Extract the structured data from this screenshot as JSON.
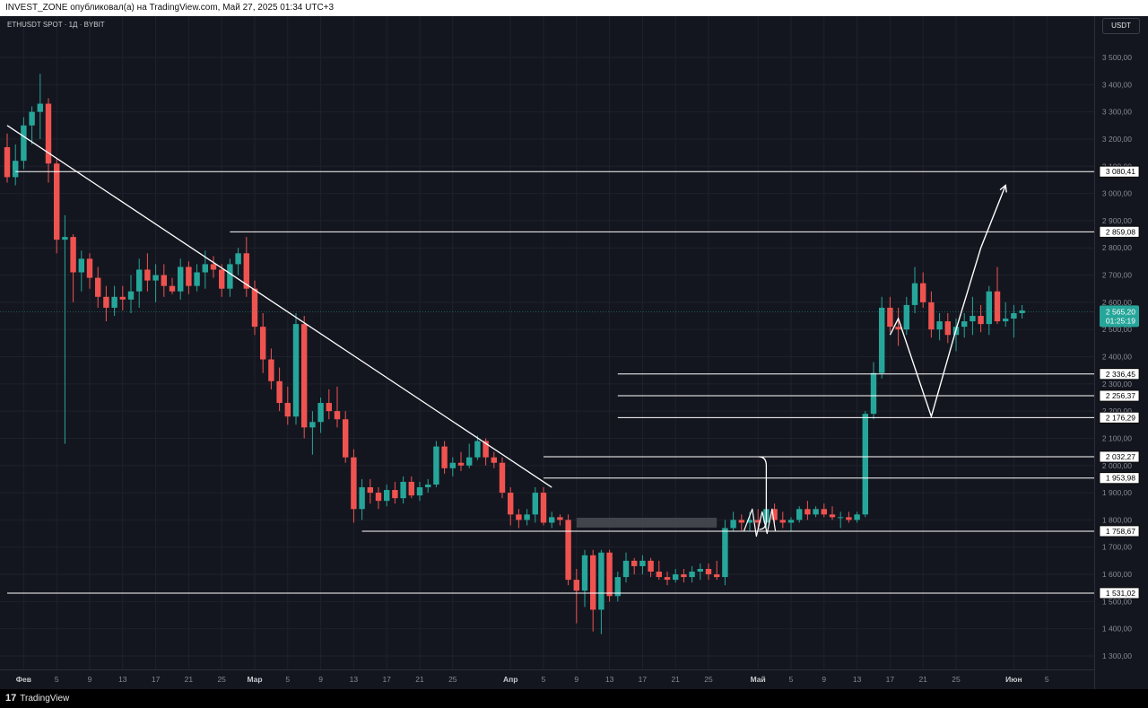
{
  "header": {
    "publish_line": "INVEST_ZONE опубликовал(а) на TradingView.com, Май 27, 2025 01:34 UTC+3"
  },
  "chart_header": {
    "symbol": "ETHUSDT SPOT · 1Д · BYBIT",
    "currency_button": "USDT"
  },
  "footer": {
    "brand": "TradingView",
    "logo_glyph": "17"
  },
  "colors": {
    "background": "#14161f",
    "bull": "#26a69a",
    "bear": "#ef5350",
    "drawing": "#ffffff",
    "axis_text": "#868993",
    "grid": "#1e212b"
  },
  "chart_data": {
    "type": "candlestick",
    "title": "ETHUSDT SPOT · 1Д · BYBIT",
    "y_axis": {
      "ticks": [
        1300,
        1400,
        1500,
        1600,
        1700,
        1800,
        1900,
        2000,
        2100,
        2200,
        2300,
        2400,
        2500,
        2600,
        2700,
        2800,
        2900,
        3000,
        3100,
        3200,
        3300,
        3400,
        3500
      ],
      "tick_labels": [
        "1 300,00",
        "1 400,00",
        "1 500,00",
        "1 600,00",
        "1 700,00",
        "1 800,00",
        "1 900,00",
        "2 000,00",
        "2 100,00",
        "2 200,00",
        "2 300,00",
        "2 400,00",
        "2 500,00",
        "2 600,00",
        "2 700,00",
        "2 800,00",
        "2 900,00",
        "3 000,00",
        "3 100,00",
        "3 200,00",
        "3 300,00",
        "3 400,00",
        "3 500,00"
      ],
      "range": [
        1230,
        3580
      ]
    },
    "x_axis": {
      "start_date": "2025-01-30",
      "tick_labels": [
        {
          "day": 2,
          "label": "Фев",
          "bold": true
        },
        {
          "day": 6,
          "label": "5"
        },
        {
          "day": 10,
          "label": "9"
        },
        {
          "day": 14,
          "label": "13"
        },
        {
          "day": 18,
          "label": "17"
        },
        {
          "day": 22,
          "label": "21"
        },
        {
          "day": 26,
          "label": "25"
        },
        {
          "day": 30,
          "label": "Мар",
          "bold": true
        },
        {
          "day": 34,
          "label": "5"
        },
        {
          "day": 38,
          "label": "9"
        },
        {
          "day": 42,
          "label": "13"
        },
        {
          "day": 46,
          "label": "17"
        },
        {
          "day": 50,
          "label": "21"
        },
        {
          "day": 54,
          "label": "25"
        },
        {
          "day": 61,
          "label": "Апр",
          "bold": true
        },
        {
          "day": 65,
          "label": "5"
        },
        {
          "day": 69,
          "label": "9"
        },
        {
          "day": 73,
          "label": "13"
        },
        {
          "day": 77,
          "label": "17"
        },
        {
          "day": 81,
          "label": "21"
        },
        {
          "day": 85,
          "label": "25"
        },
        {
          "day": 91,
          "label": "Май",
          "bold": true
        },
        {
          "day": 95,
          "label": "5"
        },
        {
          "day": 99,
          "label": "9"
        },
        {
          "day": 103,
          "label": "13"
        },
        {
          "day": 107,
          "label": "17"
        },
        {
          "day": 111,
          "label": "21"
        },
        {
          "day": 115,
          "label": "25"
        },
        {
          "day": 122,
          "label": "Июн",
          "bold": true
        },
        {
          "day": 126,
          "label": "5"
        }
      ]
    },
    "candles": [
      {
        "o": 3170,
        "h": 3220,
        "l": 3040,
        "c": 3060
      },
      {
        "o": 3060,
        "h": 3180,
        "l": 3030,
        "c": 3120
      },
      {
        "o": 3120,
        "h": 3280,
        "l": 3090,
        "c": 3250
      },
      {
        "o": 3250,
        "h": 3320,
        "l": 3180,
        "c": 3300
      },
      {
        "o": 3300,
        "h": 3440,
        "l": 3200,
        "c": 3330
      },
      {
        "o": 3330,
        "h": 3350,
        "l": 3040,
        "c": 3110
      },
      {
        "o": 3110,
        "h": 3130,
        "l": 2780,
        "c": 2830
      },
      {
        "o": 2830,
        "h": 2920,
        "l": 2080,
        "c": 2840
      },
      {
        "o": 2840,
        "h": 2850,
        "l": 2600,
        "c": 2710
      },
      {
        "o": 2710,
        "h": 2790,
        "l": 2640,
        "c": 2760
      },
      {
        "o": 2760,
        "h": 2780,
        "l": 2650,
        "c": 2690
      },
      {
        "o": 2690,
        "h": 2730,
        "l": 2580,
        "c": 2620
      },
      {
        "o": 2620,
        "h": 2660,
        "l": 2530,
        "c": 2580
      },
      {
        "o": 2580,
        "h": 2660,
        "l": 2550,
        "c": 2620
      },
      {
        "o": 2620,
        "h": 2660,
        "l": 2570,
        "c": 2610
      },
      {
        "o": 2610,
        "h": 2700,
        "l": 2560,
        "c": 2640
      },
      {
        "o": 2640,
        "h": 2760,
        "l": 2580,
        "c": 2720
      },
      {
        "o": 2720,
        "h": 2780,
        "l": 2640,
        "c": 2680
      },
      {
        "o": 2680,
        "h": 2740,
        "l": 2600,
        "c": 2700
      },
      {
        "o": 2700,
        "h": 2740,
        "l": 2620,
        "c": 2660
      },
      {
        "o": 2660,
        "h": 2690,
        "l": 2630,
        "c": 2640
      },
      {
        "o": 2640,
        "h": 2760,
        "l": 2610,
        "c": 2730
      },
      {
        "o": 2730,
        "h": 2750,
        "l": 2630,
        "c": 2660
      },
      {
        "o": 2660,
        "h": 2740,
        "l": 2640,
        "c": 2710
      },
      {
        "o": 2710,
        "h": 2790,
        "l": 2650,
        "c": 2740
      },
      {
        "o": 2740,
        "h": 2770,
        "l": 2690,
        "c": 2720
      },
      {
        "o": 2720,
        "h": 2740,
        "l": 2620,
        "c": 2650
      },
      {
        "o": 2650,
        "h": 2760,
        "l": 2620,
        "c": 2740
      },
      {
        "o": 2740,
        "h": 2800,
        "l": 2700,
        "c": 2780
      },
      {
        "o": 2780,
        "h": 2840,
        "l": 2620,
        "c": 2650
      },
      {
        "o": 2650,
        "h": 2680,
        "l": 2480,
        "c": 2510
      },
      {
        "o": 2510,
        "h": 2560,
        "l": 2340,
        "c": 2390
      },
      {
        "o": 2390,
        "h": 2430,
        "l": 2280,
        "c": 2310
      },
      {
        "o": 2310,
        "h": 2360,
        "l": 2200,
        "c": 2230
      },
      {
        "o": 2230,
        "h": 2290,
        "l": 2150,
        "c": 2180
      },
      {
        "o": 2180,
        "h": 2560,
        "l": 2150,
        "c": 2520
      },
      {
        "o": 2520,
        "h": 2550,
        "l": 2100,
        "c": 2140
      },
      {
        "o": 2140,
        "h": 2200,
        "l": 2040,
        "c": 2160
      },
      {
        "o": 2160,
        "h": 2250,
        "l": 2120,
        "c": 2230
      },
      {
        "o": 2230,
        "h": 2280,
        "l": 2170,
        "c": 2200
      },
      {
        "o": 2200,
        "h": 2290,
        "l": 2140,
        "c": 2170
      },
      {
        "o": 2170,
        "h": 2200,
        "l": 2010,
        "c": 2030
      },
      {
        "o": 2030,
        "h": 2060,
        "l": 1790,
        "c": 1840
      },
      {
        "o": 1840,
        "h": 1950,
        "l": 1800,
        "c": 1920
      },
      {
        "o": 1920,
        "h": 1950,
        "l": 1860,
        "c": 1900
      },
      {
        "o": 1900,
        "h": 1920,
        "l": 1840,
        "c": 1870
      },
      {
        "o": 1870,
        "h": 1930,
        "l": 1850,
        "c": 1910
      },
      {
        "o": 1910,
        "h": 1940,
        "l": 1860,
        "c": 1880
      },
      {
        "o": 1880,
        "h": 1960,
        "l": 1860,
        "c": 1940
      },
      {
        "o": 1940,
        "h": 1960,
        "l": 1880,
        "c": 1890
      },
      {
        "o": 1890,
        "h": 1940,
        "l": 1870,
        "c": 1920
      },
      {
        "o": 1920,
        "h": 1950,
        "l": 1900,
        "c": 1930
      },
      {
        "o": 1930,
        "h": 2090,
        "l": 1920,
        "c": 2070
      },
      {
        "o": 2070,
        "h": 2090,
        "l": 1970,
        "c": 1990
      },
      {
        "o": 1990,
        "h": 2030,
        "l": 1960,
        "c": 2010
      },
      {
        "o": 2010,
        "h": 2050,
        "l": 1980,
        "c": 2000
      },
      {
        "o": 2000,
        "h": 2080,
        "l": 1990,
        "c": 2030
      },
      {
        "o": 2030,
        "h": 2110,
        "l": 2020,
        "c": 2090
      },
      {
        "o": 2090,
        "h": 2100,
        "l": 2000,
        "c": 2030
      },
      {
        "o": 2030,
        "h": 2050,
        "l": 1990,
        "c": 2010
      },
      {
        "o": 2010,
        "h": 2030,
        "l": 1880,
        "c": 1900
      },
      {
        "o": 1900,
        "h": 1920,
        "l": 1780,
        "c": 1820
      },
      {
        "o": 1820,
        "h": 1840,
        "l": 1770,
        "c": 1800
      },
      {
        "o": 1800,
        "h": 1840,
        "l": 1780,
        "c": 1820
      },
      {
        "o": 1820,
        "h": 1920,
        "l": 1790,
        "c": 1900
      },
      {
        "o": 1900,
        "h": 1920,
        "l": 1780,
        "c": 1790
      },
      {
        "o": 1790,
        "h": 1830,
        "l": 1770,
        "c": 1810
      },
      {
        "o": 1810,
        "h": 1820,
        "l": 1780,
        "c": 1800
      },
      {
        "o": 1800,
        "h": 1820,
        "l": 1560,
        "c": 1580
      },
      {
        "o": 1580,
        "h": 1620,
        "l": 1420,
        "c": 1540
      },
      {
        "o": 1540,
        "h": 1690,
        "l": 1480,
        "c": 1670
      },
      {
        "o": 1670,
        "h": 1690,
        "l": 1390,
        "c": 1470
      },
      {
        "o": 1470,
        "h": 1690,
        "l": 1380,
        "c": 1680
      },
      {
        "o": 1680,
        "h": 1690,
        "l": 1500,
        "c": 1520
      },
      {
        "o": 1520,
        "h": 1610,
        "l": 1500,
        "c": 1590
      },
      {
        "o": 1590,
        "h": 1680,
        "l": 1570,
        "c": 1650
      },
      {
        "o": 1650,
        "h": 1660,
        "l": 1600,
        "c": 1630
      },
      {
        "o": 1630,
        "h": 1670,
        "l": 1600,
        "c": 1650
      },
      {
        "o": 1650,
        "h": 1660,
        "l": 1590,
        "c": 1610
      },
      {
        "o": 1610,
        "h": 1650,
        "l": 1580,
        "c": 1590
      },
      {
        "o": 1590,
        "h": 1610,
        "l": 1560,
        "c": 1580
      },
      {
        "o": 1580,
        "h": 1620,
        "l": 1570,
        "c": 1600
      },
      {
        "o": 1600,
        "h": 1620,
        "l": 1570,
        "c": 1590
      },
      {
        "o": 1590,
        "h": 1630,
        "l": 1570,
        "c": 1610
      },
      {
        "o": 1610,
        "h": 1640,
        "l": 1580,
        "c": 1620
      },
      {
        "o": 1620,
        "h": 1640,
        "l": 1580,
        "c": 1600
      },
      {
        "o": 1600,
        "h": 1650,
        "l": 1580,
        "c": 1590
      },
      {
        "o": 1590,
        "h": 1800,
        "l": 1560,
        "c": 1770
      },
      {
        "o": 1770,
        "h": 1830,
        "l": 1760,
        "c": 1800
      },
      {
        "o": 1800,
        "h": 1820,
        "l": 1760,
        "c": 1790
      },
      {
        "o": 1790,
        "h": 1830,
        "l": 1760,
        "c": 1800
      },
      {
        "o": 1800,
        "h": 1840,
        "l": 1760,
        "c": 1790
      },
      {
        "o": 1790,
        "h": 1850,
        "l": 1770,
        "c": 1840
      },
      {
        "o": 1840,
        "h": 1860,
        "l": 1790,
        "c": 1800
      },
      {
        "o": 1800,
        "h": 1830,
        "l": 1770,
        "c": 1790
      },
      {
        "o": 1790,
        "h": 1810,
        "l": 1760,
        "c": 1800
      },
      {
        "o": 1800,
        "h": 1850,
        "l": 1790,
        "c": 1840
      },
      {
        "o": 1840,
        "h": 1870,
        "l": 1800,
        "c": 1820
      },
      {
        "o": 1820,
        "h": 1850,
        "l": 1810,
        "c": 1840
      },
      {
        "o": 1840,
        "h": 1860,
        "l": 1810,
        "c": 1820
      },
      {
        "o": 1820,
        "h": 1850,
        "l": 1800,
        "c": 1810
      },
      {
        "o": 1810,
        "h": 1830,
        "l": 1770,
        "c": 1810
      },
      {
        "o": 1810,
        "h": 1830,
        "l": 1790,
        "c": 1800
      },
      {
        "o": 1800,
        "h": 1830,
        "l": 1790,
        "c": 1820
      },
      {
        "o": 1820,
        "h": 2200,
        "l": 1810,
        "c": 2190
      },
      {
        "o": 2190,
        "h": 2380,
        "l": 2170,
        "c": 2340
      },
      {
        "o": 2340,
        "h": 2620,
        "l": 2320,
        "c": 2580
      },
      {
        "o": 2580,
        "h": 2620,
        "l": 2490,
        "c": 2510
      },
      {
        "o": 2510,
        "h": 2580,
        "l": 2440,
        "c": 2500
      },
      {
        "o": 2500,
        "h": 2620,
        "l": 2480,
        "c": 2590
      },
      {
        "o": 2590,
        "h": 2730,
        "l": 2560,
        "c": 2670
      },
      {
        "o": 2670,
        "h": 2710,
        "l": 2580,
        "c": 2600
      },
      {
        "o": 2600,
        "h": 2640,
        "l": 2470,
        "c": 2500
      },
      {
        "o": 2500,
        "h": 2560,
        "l": 2460,
        "c": 2530
      },
      {
        "o": 2530,
        "h": 2560,
        "l": 2450,
        "c": 2480
      },
      {
        "o": 2480,
        "h": 2540,
        "l": 2420,
        "c": 2510
      },
      {
        "o": 2510,
        "h": 2560,
        "l": 2470,
        "c": 2530
      },
      {
        "o": 2530,
        "h": 2620,
        "l": 2480,
        "c": 2550
      },
      {
        "o": 2550,
        "h": 2590,
        "l": 2490,
        "c": 2520
      },
      {
        "o": 2520,
        "h": 2660,
        "l": 2480,
        "c": 2640
      },
      {
        "o": 2640,
        "h": 2730,
        "l": 2520,
        "c": 2530
      },
      {
        "o": 2530,
        "h": 2600,
        "l": 2510,
        "c": 2540
      },
      {
        "o": 2540,
        "h": 2590,
        "l": 2470,
        "c": 2560
      },
      {
        "o": 2560,
        "h": 2590,
        "l": 2540,
        "c": 2570
      }
    ],
    "horizontal_levels": [
      {
        "value": 3080.41,
        "label": "3 080,41",
        "from_day": 1
      },
      {
        "value": 2859.08,
        "label": "2 859,08",
        "from_day": 27
      },
      {
        "value": 2336.45,
        "label": "2 336,45",
        "from_day": 74
      },
      {
        "value": 2256.37,
        "label": "2 256,37",
        "from_day": 74
      },
      {
        "value": 2176.29,
        "label": "2 176,29",
        "from_day": 74
      },
      {
        "value": 2032.27,
        "label": "2 032,27",
        "from_day": 65
      },
      {
        "value": 1953.98,
        "label": "1 953,98",
        "from_day": 65
      },
      {
        "value": 1758.67,
        "label": "1 758,67",
        "from_day": 43
      },
      {
        "value": 1531.02,
        "label": "1 531,02",
        "from_day": 0
      }
    ],
    "current_price": {
      "value": 2565.2,
      "label": "2 565,20",
      "countdown": "01:25:19"
    },
    "zone": {
      "from_day": 69,
      "to_day": 86,
      "low": 1772,
      "high": 1808
    },
    "trendline": {
      "from": {
        "day": 0,
        "value": 3250
      },
      "to": {
        "day": 66,
        "value": 1920
      }
    },
    "projection_path": [
      {
        "day": 107,
        "value": 2480
      },
      {
        "day": 108,
        "value": 2540
      },
      {
        "day": 112,
        "value": 2180
      },
      {
        "day": 115,
        "value": 2500
      },
      {
        "day": 118,
        "value": 2800
      },
      {
        "day": 121,
        "value": 3030
      }
    ],
    "wave_mark": [
      {
        "day": 89.3,
        "value": 1760
      },
      {
        "day": 90.3,
        "value": 1840
      },
      {
        "day": 90.8,
        "value": 1740
      },
      {
        "day": 91.5,
        "value": 1830
      },
      {
        "day": 92.1,
        "value": 1750
      },
      {
        "day": 92.7,
        "value": 1840
      },
      {
        "day": 93.1,
        "value": 1760
      }
    ],
    "bracket": {
      "day": 92,
      "top": 2032,
      "bottom": 1765
    }
  }
}
